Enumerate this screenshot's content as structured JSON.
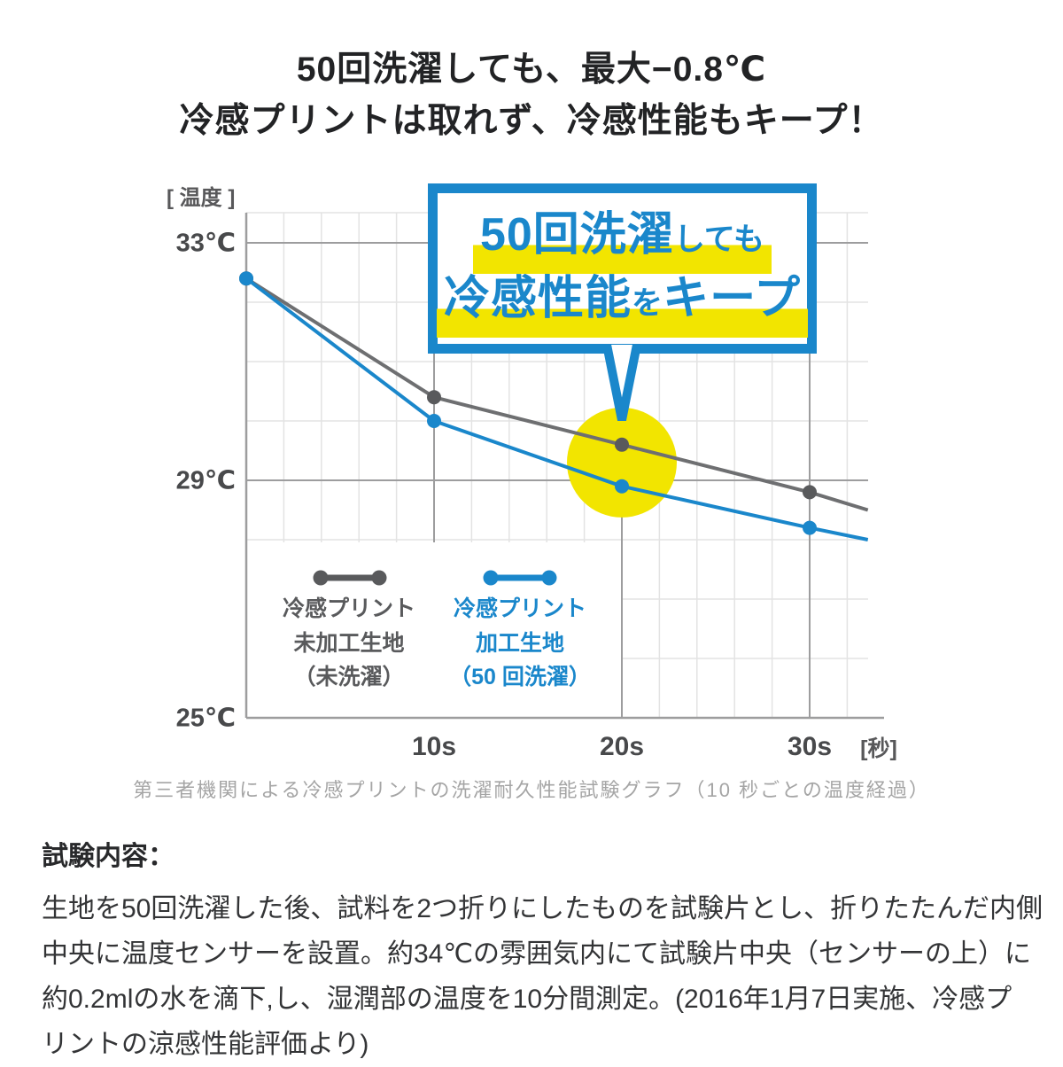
{
  "title": {
    "line1": "50回洗濯しても、最大−0.8℃",
    "line2": "冷感プリントは取れず、冷感性能もキープ！"
  },
  "callout": {
    "line1_big": "50回洗濯",
    "line1_small": "しても",
    "line2_big1": "冷感性能",
    "line2_small": "を",
    "line2_big2": "キープ"
  },
  "chart_data": {
    "type": "line",
    "title": "",
    "y_axis_unit_label": "[ 温度 ]",
    "x_axis_unit_label": "[秒]",
    "y_tick_labels": [
      "33℃",
      "29℃",
      "25℃"
    ],
    "y_tick_values": [
      33,
      29,
      25
    ],
    "x_tick_labels": [
      "10s",
      "20s",
      "30s"
    ],
    "x_tick_values": [
      10,
      20,
      30
    ],
    "x": [
      0,
      10,
      20,
      30
    ],
    "ylim": [
      25,
      33.5
    ],
    "xlim": [
      0,
      33.1
    ],
    "grid": true,
    "series": [
      {
        "name": "冷感プリント未加工生地（未洗濯）",
        "color": "#6e6f71",
        "dot_color": "#595a5c",
        "values": [
          32.4,
          30.4,
          29.6,
          28.8
        ],
        "line_end": {
          "x": 33.1,
          "value": 28.5
        }
      },
      {
        "name": "冷感プリント加工生地（50回洗濯）",
        "color": "#1a87cb",
        "dot_color": "#1a87cb",
        "values": [
          32.4,
          30.0,
          28.9,
          28.2
        ],
        "line_end": {
          "x": 33.1,
          "value": 28.0
        }
      }
    ],
    "annotations": {
      "highlight_circle": {
        "x": 20,
        "y": 29.3,
        "color": "#f2e500"
      },
      "callout_box": {
        "text": "50回洗濯しても 冷感性能をキープ",
        "border_color": "#1a87cb",
        "points_to_x": 20
      }
    },
    "legend_position": "inside-bottom-left"
  },
  "legend": {
    "items": [
      {
        "lines": [
          "冷感プリント",
          "未加工生地",
          "（未洗濯）"
        ],
        "color": "#595a5c"
      },
      {
        "lines": [
          "冷感プリント",
          "加工生地",
          "（50 回洗濯）"
        ],
        "color": "#1a87cb"
      }
    ]
  },
  "caption": "第三者機関による冷感プリントの洗濯耐久性能試験グラフ（10 秒ごとの温度経過）",
  "test_description": {
    "heading": "試験内容：",
    "lines": [
      "生地を50回洗濯した後、試料を2つ折りにしたものを試験片とし、折りたたんだ内側",
      "中央に温度センサーを設置。約34℃の雰囲気内にて試験片中央（センサーの上）に",
      "約0.2mlの水を滴下,し、湿潤部の温度を10分間測定。(2016年1月7日実施、冷感プ",
      "リントの涼感性能評価より)"
    ]
  },
  "colors": {
    "blue": "#1a87cb",
    "gray_line": "#6e6f71",
    "gray_dot": "#595a5c",
    "yellow": "#f2e500",
    "grid_minor": "#e3e3e3",
    "grid_major": "#9d9d9e",
    "axis": "#9d9d9e",
    "tick_text": "#48494b",
    "caption_text": "#a5a5a5"
  }
}
